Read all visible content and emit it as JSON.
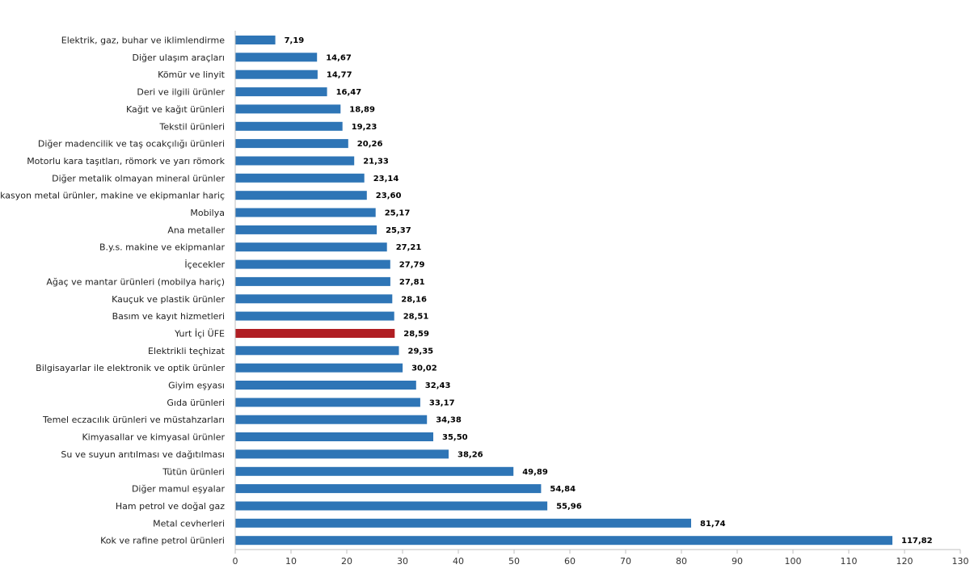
{
  "chart_data": {
    "type": "bar",
    "orientation": "horizontal",
    "categories": [
      "Elektrik, gaz, buhar ve iklimlendirme",
      "Diğer ulaşım araçları",
      "Kömür ve linyit",
      "Deri ve ilgili ürünler",
      "Kağıt ve kağıt ürünleri",
      "Tekstil ürünleri",
      "Diğer madencilik ve taş ocakçılığı ürünleri",
      "Motorlu kara taşıtları, römork ve yarı römork",
      "Diğer metalik olmayan mineral ürünler",
      "Fabrikasyon metal ürünler, makine ve ekipmanlar hariç",
      "Mobilya",
      "Ana metaller",
      "B.y.s. makine ve ekipmanlar",
      "İçecekler",
      "Ağaç ve mantar ürünleri (mobilya hariç)",
      "Kauçuk ve plastik ürünler",
      "Basım ve kayıt hizmetleri",
      "Yurt İçi ÜFE",
      "Elektrikli teçhizat",
      "Bilgisayarlar ile elektronik ve optik ürünler",
      "Giyim eşyası",
      "Gıda ürünleri",
      "Temel eczacılık ürünleri ve müstahzarları",
      "Kimyasallar ve kimyasal ürünler",
      "Su ve suyun arıtılması ve dağıtılması",
      "Tütün ürünleri",
      "Diğer mamul eşyalar",
      "Ham petrol ve doğal gaz",
      "Metal cevherleri",
      "Kok ve rafine petrol ürünleri"
    ],
    "values": [
      7.19,
      14.67,
      14.77,
      16.47,
      18.89,
      19.23,
      20.26,
      21.33,
      23.14,
      23.6,
      25.17,
      25.37,
      27.21,
      27.79,
      27.81,
      28.16,
      28.51,
      28.59,
      29.35,
      30.02,
      32.43,
      33.17,
      34.38,
      35.5,
      38.26,
      49.89,
      54.84,
      55.96,
      81.74,
      117.82
    ],
    "value_labels": [
      "7,19",
      "14,67",
      "14,77",
      "16,47",
      "18,89",
      "19,23",
      "20,26",
      "21,33",
      "23,14",
      "23,60",
      "25,17",
      "25,37",
      "27,21",
      "27,79",
      "27,81",
      "28,16",
      "28,51",
      "28,59",
      "29,35",
      "30,02",
      "32,43",
      "33,17",
      "34,38",
      "35,50",
      "38,26",
      "49,89",
      "54,84",
      "55,96",
      "81,74",
      "117,82"
    ],
    "highlight_category": "Yurt İçi ÜFE",
    "xlim": [
      0,
      130
    ],
    "xticks": [
      0,
      10,
      20,
      30,
      40,
      50,
      60,
      70,
      80,
      90,
      100,
      110,
      120,
      130
    ],
    "grid": false,
    "legend": "none",
    "colors": {
      "bar": "#2e75b6",
      "highlight": "#b01e23",
      "axis": "#bfbfbf"
    }
  }
}
